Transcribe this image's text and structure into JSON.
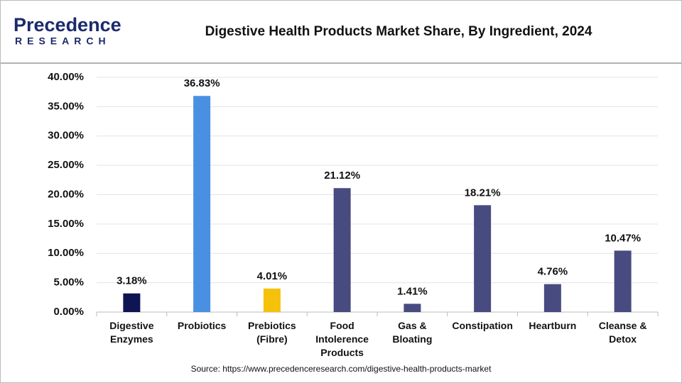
{
  "logo": {
    "name": "Precedence",
    "sub": "RESEARCH"
  },
  "chart_data": {
    "type": "bar",
    "title": "Digestive Health Products Market Share, By Ingredient, 2024",
    "categories": [
      "Digestive\nEnzymes",
      "Probiotics",
      "Prebiotics\n(Fibre)",
      "Food\nIntolerence\nProducts",
      "Gas &\nBloating",
      "Constipation",
      "Heartburn",
      "Cleanse &\nDetox"
    ],
    "values": [
      3.18,
      36.83,
      4.01,
      21.12,
      1.41,
      18.21,
      4.76,
      10.47
    ],
    "value_labels": [
      "3.18%",
      "36.83%",
      "4.01%",
      "21.12%",
      "1.41%",
      "18.21%",
      "4.76%",
      "10.47%"
    ],
    "colors": [
      "#0f1552",
      "#4a90e2",
      "#f5c10a",
      "#474b80",
      "#474b80",
      "#474b80",
      "#474b80",
      "#474b80"
    ],
    "ylim": [
      0,
      40
    ],
    "yticks": [
      {
        "value": 0,
        "label": "0.00%"
      },
      {
        "value": 5,
        "label": "5.00%"
      },
      {
        "value": 10,
        "label": "10.00%"
      },
      {
        "value": 15,
        "label": "15.00%"
      },
      {
        "value": 20,
        "label": "20.00%"
      },
      {
        "value": 25,
        "label": "25.00%"
      },
      {
        "value": 30,
        "label": "30.00%"
      },
      {
        "value": 35,
        "label": "35.00%"
      },
      {
        "value": 40,
        "label": "40.00%"
      }
    ],
    "grid": true,
    "source": "Source: https://www.precedenceresearch.com/digestive-health-products-market"
  }
}
